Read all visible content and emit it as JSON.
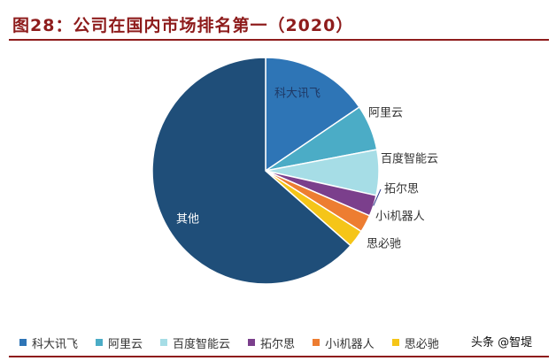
{
  "title": "图28：公司在国内市场排名第一（2020）",
  "watermark": "头条 @智堤",
  "chart_data": {
    "type": "pie",
    "start_angle_deg": 0,
    "direction": "clockwise",
    "slices": [
      {
        "label": "科大讯飞",
        "value": 15.5,
        "color": "#2e75b6",
        "label_color": "#1f3864",
        "label_position": "inside"
      },
      {
        "label": "阿里云",
        "value": 6.5,
        "color": "#4bacc6",
        "label_color": "#333333",
        "label_position": "outside"
      },
      {
        "label": "百度智能云",
        "value": 6.5,
        "color": "#a6dde6",
        "label_color": "#333333",
        "label_position": "outside"
      },
      {
        "label": "拓尔思",
        "value": 3.0,
        "color": "#7b3f8c",
        "label_color": "#333333",
        "label_position": "outside"
      },
      {
        "label": "小i机器人",
        "value": 2.5,
        "color": "#ed7d31",
        "label_color": "#333333",
        "label_position": "outside"
      },
      {
        "label": "思必驰",
        "value": 2.5,
        "color": "#f5c518",
        "label_color": "#333333",
        "label_position": "outside"
      },
      {
        "label": "其他",
        "value": 63.5,
        "color": "#1f4e79",
        "label_color": "#ffffff",
        "label_position": "inside"
      }
    ],
    "legend_position": "bottom",
    "legend_items": [
      "科大讯飞",
      "阿里云",
      "百度智能云",
      "拓尔思",
      "小i机器人",
      "思必驰"
    ]
  }
}
